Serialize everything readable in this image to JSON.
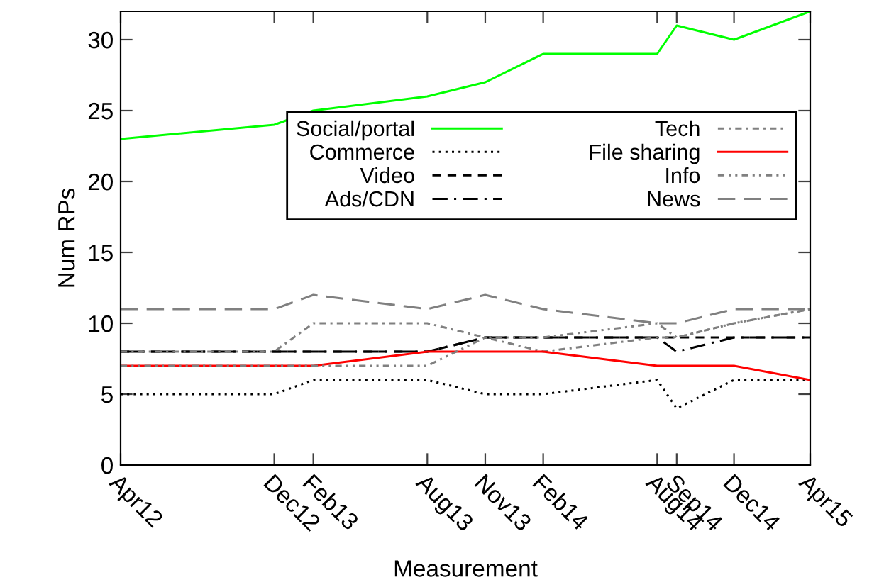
{
  "chart_data": {
    "type": "line",
    "xlabel": "Measurement",
    "ylabel": "Num RPs",
    "x": [
      "2012-04",
      "2012-12",
      "2013-02",
      "2013-08",
      "2013-11",
      "2014-02",
      "2014-08",
      "2014-09",
      "2014-12",
      "2015-04"
    ],
    "xlim": [
      "2012-04",
      "2015-04"
    ],
    "xticks": [
      {
        "value": "2012-04",
        "label": "Apr12"
      },
      {
        "value": "2012-12",
        "label": "Dec12"
      },
      {
        "value": "2013-02",
        "label": "Feb13"
      },
      {
        "value": "2013-08",
        "label": "Aug13"
      },
      {
        "value": "2013-11",
        "label": "Nov13"
      },
      {
        "value": "2014-02",
        "label": "Feb14"
      },
      {
        "value": "2014-08",
        "label": "Aug14"
      },
      {
        "value": "2014-09",
        "label": "Sep14"
      },
      {
        "value": "2014-12",
        "label": "Dec14"
      },
      {
        "value": "2015-04",
        "label": "Apr15"
      }
    ],
    "ylim": [
      0,
      32
    ],
    "yticks": [
      0,
      5,
      10,
      15,
      20,
      25,
      30
    ],
    "grid": false,
    "legend": "right",
    "marker": "none",
    "series": [
      {
        "name": "Social/portal",
        "color": "#00ff00",
        "line_style": "solid",
        "values": [
          23,
          24,
          25,
          26,
          27,
          29,
          29,
          31,
          30,
          32
        ]
      },
      {
        "name": "Commerce",
        "color": "#000000",
        "line_style": "dotted",
        "values": [
          5,
          5,
          6,
          6,
          5,
          5,
          6,
          4,
          6,
          6
        ]
      },
      {
        "name": "Video",
        "color": "#000000",
        "line_style": "dashed",
        "values": [
          8,
          8,
          8,
          8,
          9,
          9,
          9,
          9,
          9,
          9
        ]
      },
      {
        "name": "Ads/CDN",
        "color": "#000000",
        "line_style": "longdashdot",
        "values": [
          8,
          8,
          8,
          8,
          9,
          9,
          9,
          8,
          9,
          9
        ]
      },
      {
        "name": "Tech",
        "color": "#808080",
        "line_style": "dashdot",
        "values": [
          8,
          8,
          10,
          10,
          9,
          8,
          9,
          9,
          10,
          11
        ]
      },
      {
        "name": "File sharing",
        "color": "#ff0000",
        "line_style": "solid",
        "values": [
          7,
          7,
          7,
          8,
          8,
          8,
          7,
          7,
          7,
          6
        ]
      },
      {
        "name": "Info",
        "color": "#808080",
        "line_style": "dashdotdot",
        "values": [
          7,
          7,
          7,
          7,
          9,
          9,
          10,
          9,
          10,
          11
        ]
      },
      {
        "name": "News",
        "color": "#808080",
        "line_style": "longdash",
        "values": [
          11,
          11,
          12,
          11,
          12,
          11,
          10,
          10,
          11,
          11
        ]
      }
    ]
  }
}
